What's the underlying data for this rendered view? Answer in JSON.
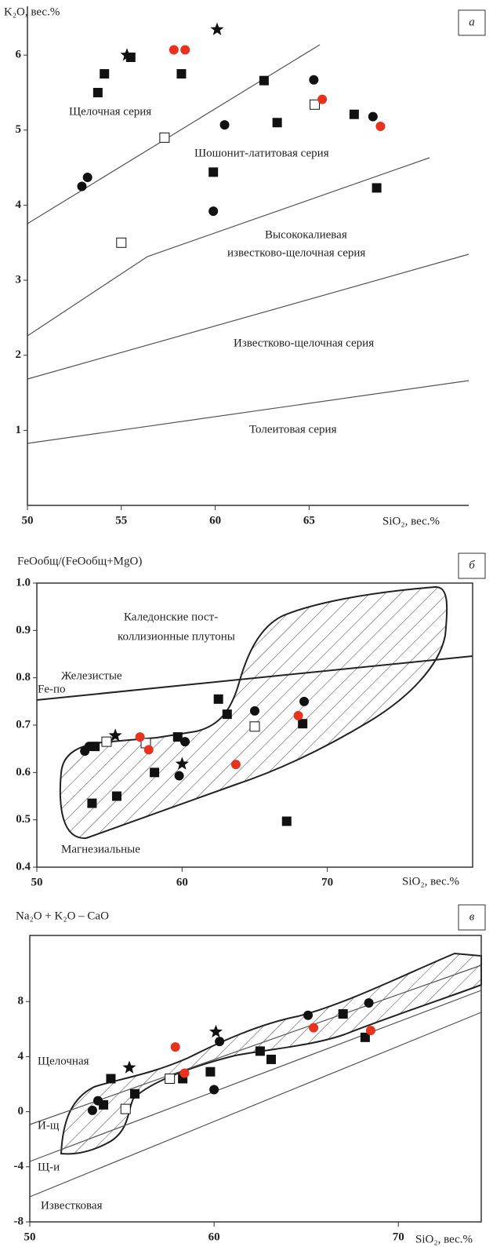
{
  "chart_data": [
    {
      "type": "scatter",
      "panel_label": "а",
      "ylabel": "K₂O, вес.%",
      "xlabel": "SiO₂, вес.%",
      "xlim": [
        50,
        73.5
      ],
      "ylim": [
        0,
        6.65
      ],
      "xticks": [
        50,
        55,
        60,
        65
      ],
      "yticks": [
        1,
        2,
        3,
        4,
        5,
        6
      ],
      "frame": false,
      "annotations": [
        "Щелочная серия",
        "Шошонит-латитовая серия",
        "Высококалиевая",
        "известково-щелочная серия",
        "Известково-щелочная серия",
        "Толеитовая серия"
      ],
      "series": [
        {
          "marker": "square",
          "color": "#111111",
          "x": [
            53.75,
            54.1,
            55.5,
            58.2,
            62.6,
            63.3,
            59.9,
            67.4,
            68.6
          ],
          "values": [
            5.5,
            5.75,
            5.97,
            5.75,
            5.66,
            5.1,
            4.44,
            5.21,
            4.23
          ]
        },
        {
          "marker": "circle",
          "color": "#111111",
          "x": [
            52.9,
            53.2,
            60.5,
            59.9,
            65.25,
            68.4
          ],
          "values": [
            4.25,
            4.37,
            5.07,
            3.92,
            5.67,
            5.18
          ]
        },
        {
          "marker": "open-square",
          "color": "#111111",
          "x": [
            57.3,
            55,
            65.3
          ],
          "values": [
            4.9,
            3.5,
            5.34
          ]
        },
        {
          "marker": "circle",
          "color": "#e8321e",
          "x": [
            57.8,
            58.4,
            65.7,
            68.8
          ],
          "values": [
            6.07,
            6.07,
            5.41,
            5.05
          ]
        },
        {
          "marker": "star",
          "color": "#111111",
          "x": [
            55.3,
            60.1
          ],
          "values": [
            6.0,
            6.34
          ]
        }
      ]
    },
    {
      "type": "scatter",
      "panel_label": "б",
      "ylabel": "FeOобщ/(FeOобщ+MgO)",
      "xlabel": "SiO₂, вес.%",
      "xlim": [
        50,
        80
      ],
      "ylim": [
        0.4,
        1.0
      ],
      "xticks": [
        50,
        60,
        70
      ],
      "yticks": [
        0.4,
        0.5,
        0.6,
        0.7,
        0.8,
        0.9,
        {
          "value": 1,
          "label": "1.0"
        }
      ],
      "frame": true,
      "annotations": [
        "Каледонские пост-",
        "коллизионные плутоны",
        "Железистые",
        "Fe-по",
        "Магнезиальные"
      ],
      "series": [
        {
          "marker": "square",
          "color": "#111111",
          "x": [
            54.0,
            53.8,
            55.5,
            58.1,
            59.7,
            62.5,
            63.1,
            68.3,
            67.2
          ],
          "values": [
            0.655,
            0.535,
            0.55,
            0.6,
            0.675,
            0.755,
            0.723,
            0.703,
            0.497
          ]
        },
        {
          "marker": "circle",
          "color": "#111111",
          "x": [
            53.3,
            53.6,
            60.2,
            59.8,
            65.0,
            68.4
          ],
          "values": [
            0.645,
            0.655,
            0.665,
            0.593,
            0.73,
            0.75
          ]
        },
        {
          "marker": "open-square",
          "color": "#111111",
          "x": [
            54.8,
            57.5,
            65.0
          ],
          "values": [
            0.665,
            0.662,
            0.697
          ]
        },
        {
          "marker": "circle",
          "color": "#e8321e",
          "x": [
            57.1,
            57.7,
            63.7,
            68.0
          ],
          "values": [
            0.675,
            0.648,
            0.617,
            0.72
          ]
        },
        {
          "marker": "star",
          "color": "#111111",
          "x": [
            55.4,
            60.0
          ],
          "values": [
            0.678,
            0.618
          ]
        }
      ]
    },
    {
      "type": "scatter",
      "panel_label": "в",
      "ylabel": "Na₂O + K₂O – CaO",
      "xlabel": "SiO₂, вес.%",
      "xlim": [
        50,
        74.5
      ],
      "ylim": [
        -8,
        12.8
      ],
      "xticks": [
        50,
        60,
        70
      ],
      "yticks": [
        -8,
        -4,
        0,
        4,
        8
      ],
      "frame": true,
      "annotations": [
        "Щелочная",
        "И-щ",
        "Щ-и",
        "Известковая"
      ],
      "series": [
        {
          "marker": "square",
          "color": "#111111",
          "x": [
            54.4,
            54.0,
            55.7,
            58.3,
            59.8,
            62.5,
            63.1,
            67.0,
            68.2
          ],
          "values": [
            2.4,
            0.5,
            1.3,
            2.4,
            2.9,
            4.4,
            3.8,
            7.1,
            5.4
          ]
        },
        {
          "marker": "circle",
          "color": "#111111",
          "x": [
            53.4,
            53.7,
            60.0,
            60.3,
            65.1,
            68.4
          ],
          "values": [
            0.1,
            0.8,
            1.6,
            5.1,
            7.0,
            7.9
          ]
        },
        {
          "marker": "open-square",
          "color": "#111111",
          "x": [
            55.2,
            57.6
          ],
          "values": [
            0.2,
            2.4
          ]
        },
        {
          "marker": "circle",
          "color": "#e8321e",
          "x": [
            57.9,
            58.4,
            65.4,
            68.5
          ],
          "values": [
            4.7,
            2.8,
            6.1,
            5.9
          ]
        },
        {
          "marker": "star",
          "color": "#111111",
          "x": [
            55.4,
            60.1
          ],
          "values": [
            3.2,
            5.8
          ]
        }
      ]
    }
  ]
}
